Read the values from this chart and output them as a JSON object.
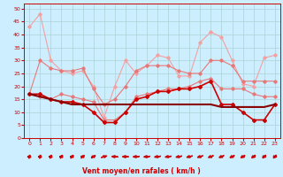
{
  "x": [
    0,
    1,
    2,
    3,
    4,
    5,
    6,
    7,
    8,
    9,
    10,
    11,
    12,
    13,
    14,
    15,
    16,
    17,
    18,
    19,
    20,
    21,
    22,
    23
  ],
  "series": [
    {
      "name": "light_pink_top",
      "color": "#f4a0a0",
      "lw": 0.8,
      "marker": "D",
      "ms": 1.8,
      "values": [
        43,
        48,
        30,
        26,
        25,
        26,
        20,
        8,
        20,
        30,
        25,
        28,
        32,
        31,
        24,
        24,
        37,
        41,
        39,
        30,
        21,
        20,
        31,
        32
      ]
    },
    {
      "name": "pink_band_upper",
      "color": "#e87878",
      "lw": 0.8,
      "marker": "D",
      "ms": 1.8,
      "values": [
        17,
        30,
        27,
        26,
        26,
        27,
        19,
        13,
        15,
        20,
        26,
        28,
        28,
        28,
        26,
        25,
        25,
        30,
        30,
        28,
        22,
        22,
        22,
        22
      ]
    },
    {
      "name": "pink_band_lower",
      "color": "#e87878",
      "lw": 0.8,
      "marker": "D",
      "ms": 1.8,
      "values": [
        17,
        16,
        15,
        17,
        16,
        15,
        14,
        7,
        7,
        10,
        16,
        17,
        18,
        19,
        19,
        20,
        22,
        23,
        19,
        19,
        19,
        17,
        16,
        16
      ]
    },
    {
      "name": "dark_red_main",
      "color": "#cc0000",
      "lw": 1.2,
      "marker": "D",
      "ms": 2.0,
      "values": [
        17,
        17,
        15,
        14,
        14,
        13,
        10,
        6,
        6,
        10,
        15,
        16,
        18,
        18,
        19,
        19,
        20,
        22,
        13,
        13,
        10,
        7,
        7,
        13
      ]
    },
    {
      "name": "dark_red_flat",
      "color": "#880000",
      "lw": 1.5,
      "marker": null,
      "ms": 0,
      "values": [
        17,
        16,
        15,
        14,
        13,
        13,
        13,
        13,
        13,
        13,
        13,
        13,
        13,
        13,
        13,
        13,
        13,
        13,
        12,
        12,
        12,
        12,
        12,
        13
      ]
    }
  ],
  "ylim": [
    0,
    52
  ],
  "yticks": [
    0,
    5,
    10,
    15,
    20,
    25,
    30,
    35,
    40,
    45,
    50
  ],
  "xlim": [
    -0.5,
    23.5
  ],
  "xticks": [
    0,
    1,
    2,
    3,
    4,
    5,
    6,
    7,
    8,
    9,
    10,
    11,
    12,
    13,
    14,
    15,
    16,
    17,
    18,
    19,
    20,
    21,
    22,
    23
  ],
  "xlabel": "Vent moyen/en rafales ( km/h )",
  "bg_color": "#cceeff",
  "grid_color": "#aad4d4",
  "xlabel_color": "#cc0000",
  "tick_color": "#cc0000",
  "wind_arrow_color": "#cc0000",
  "arrow_angles_deg": [
    80,
    80,
    75,
    70,
    65,
    60,
    50,
    30,
    175,
    180,
    185,
    190,
    195,
    195,
    200,
    205,
    210,
    215,
    220,
    225,
    230,
    235,
    240,
    245
  ]
}
